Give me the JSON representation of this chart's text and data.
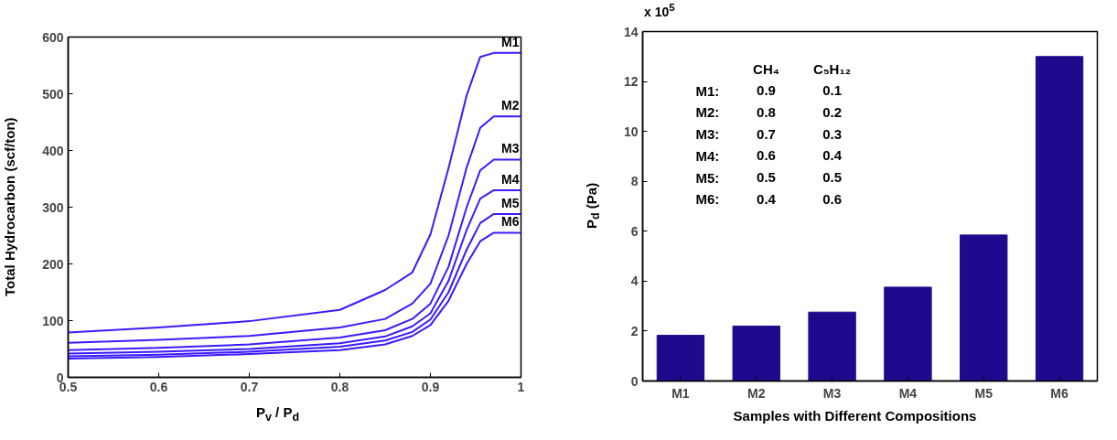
{
  "chart_data": [
    {
      "type": "line",
      "xlabel": "P$_{v}$ / P$_{d}$",
      "ylabel": "Total Hydrocarbon (scf/ton)",
      "xlim": [
        0.5,
        1
      ],
      "ylim": [
        0,
        600
      ],
      "xticks": [
        0.5,
        0.6,
        0.7,
        0.8,
        0.9,
        1
      ],
      "yticks": [
        0,
        100,
        200,
        300,
        400,
        500,
        600
      ],
      "x": [
        0.5,
        0.6,
        0.7,
        0.8,
        0.85,
        0.88,
        0.9,
        0.92,
        0.94,
        0.955,
        0.97,
        1.0
      ],
      "series": [
        {
          "name": "M1",
          "color": "#3a1aff",
          "values": [
            79,
            88,
            99,
            119,
            154,
            185,
            252,
            369,
            497,
            565,
            572,
            572
          ]
        },
        {
          "name": "M2",
          "color": "#3a1aff",
          "values": [
            61,
            66,
            73,
            88,
            103,
            130,
            165,
            250,
            370,
            440,
            460,
            460
          ]
        },
        {
          "name": "M3",
          "color": "#3a1aff",
          "values": [
            48,
            52,
            58,
            70,
            83,
            103,
            130,
            195,
            300,
            365,
            384,
            384
          ]
        },
        {
          "name": "M4",
          "color": "#3a1aff",
          "values": [
            42,
            45,
            50,
            60,
            72,
            90,
            113,
            170,
            260,
            315,
            330,
            330
          ]
        },
        {
          "name": "M5",
          "color": "#3a1aff",
          "values": [
            37,
            40,
            45,
            54,
            65,
            80,
            102,
            150,
            225,
            272,
            288,
            288
          ]
        },
        {
          "name": "M6",
          "color": "#3a1aff",
          "values": [
            33,
            36,
            41,
            48,
            58,
            73,
            92,
            135,
            200,
            240,
            255,
            255
          ]
        }
      ]
    },
    {
      "type": "bar",
      "xlabel": "Samples with Different Compositions",
      "ylabel": "P$_{d}$ (Pa)",
      "categories": [
        "M1",
        "M2",
        "M3",
        "M4",
        "M5",
        "M6"
      ],
      "values": [
        1.83,
        2.2,
        2.76,
        3.76,
        5.85,
        13.0
      ],
      "color": "#1e0a8c",
      "ylim": [
        0,
        14
      ],
      "yticks": [
        0,
        2,
        4,
        6,
        8,
        10,
        12,
        14
      ],
      "annotations": [
        "x 10$^{5}$",
        "CH₄ C₅H₁₂",
        "M1: 0.9 0.1",
        "M2: 0.8 0.2",
        "M3: 0.7 0.3",
        "M4: 0.6 0.4",
        "M5: 0.5 0.5",
        "M6: 0.4 0.6"
      ]
    }
  ]
}
